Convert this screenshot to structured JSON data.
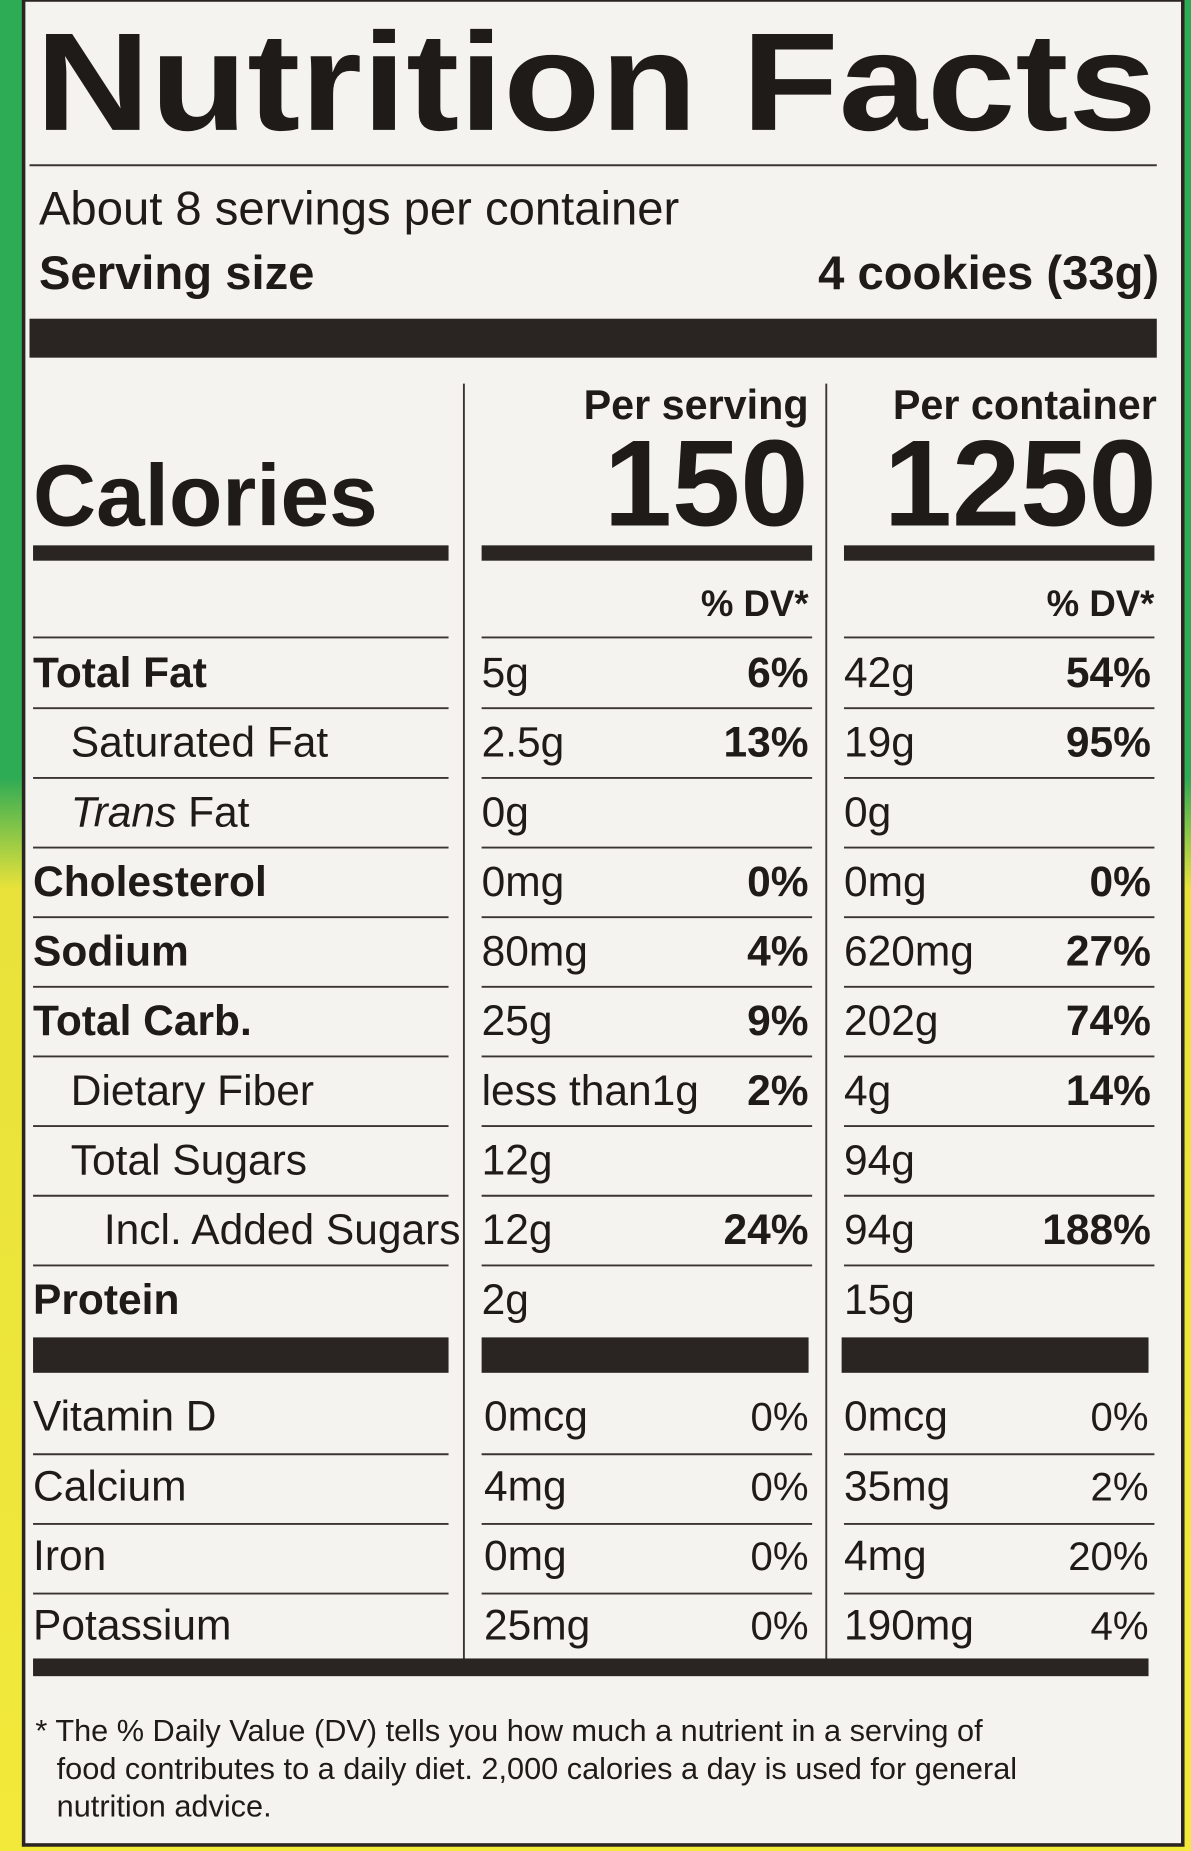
{
  "title": "Nutrition Facts",
  "servings": "About 8 servings per container",
  "serving_size": {
    "label": "Serving size",
    "value": "4 cookies (33g)"
  },
  "columns": [
    "Per serving",
    "Per container"
  ],
  "calories": {
    "label": "Calories",
    "per_serving": "150",
    "per_container": "1250"
  },
  "dv_header": [
    "% DV*",
    "% DV*"
  ],
  "nutrients": [
    {
      "label": "Total Fat",
      "level": 0,
      "serving": "5g",
      "serving_dv": "6%",
      "container": "42g",
      "container_dv": "54%"
    },
    {
      "label": "Saturated Fat",
      "level": 1,
      "serving": "2.5g",
      "serving_dv": "13%",
      "container": "19g",
      "container_dv": "95%"
    },
    {
      "label_italic": "Trans",
      "label": "Fat",
      "level": 1,
      "serving": "0g",
      "container": "0g"
    },
    {
      "label": "Cholesterol",
      "level": 0,
      "serving": "0mg",
      "serving_dv": "0%",
      "container": "0mg",
      "container_dv": "0%"
    },
    {
      "label": "Sodium",
      "level": 0,
      "serving": "80mg",
      "serving_dv": "4%",
      "container": "620mg",
      "container_dv": "27%"
    },
    {
      "label": "Total Carb.",
      "level": 0,
      "serving": "25g",
      "serving_dv": "9%",
      "container": "202g",
      "container_dv": "74%"
    },
    {
      "label": "Dietary Fiber",
      "level": 1,
      "serving": "less than1g",
      "serving_dv": "2%",
      "container": "4g",
      "container_dv": "14%"
    },
    {
      "label": "Total Sugars",
      "level": 1,
      "serving": "12g",
      "container": "94g"
    },
    {
      "label": "Incl. Added Sugars",
      "level": 2,
      "serving": "12g",
      "serving_dv": "24%",
      "container": "94g",
      "container_dv": "188%"
    },
    {
      "label": "Protein",
      "level": 0,
      "serving": "2g",
      "container": "15g"
    }
  ],
  "vitamins": [
    {
      "label": "Vitamin D",
      "serving": "0mcg",
      "serving_dv": "0%",
      "container": "0mcg",
      "container_dv": "0%"
    },
    {
      "label": "Calcium",
      "serving": "4mg",
      "serving_dv": "0%",
      "container": "35mg",
      "container_dv": "2%"
    },
    {
      "label": "Iron",
      "serving": "0mg",
      "serving_dv": "0%",
      "container": "4mg",
      "container_dv": "20%"
    },
    {
      "label": "Potassium",
      "serving": "25mg",
      "serving_dv": "0%",
      "container": "190mg",
      "container_dv": "4%"
    }
  ],
  "footnote": [
    "* The % Daily Value (DV) tells you how much a nutrient in a serving of",
    "food contributes to a daily diet. 2,000 calories a day is used for general",
    "nutrition advice."
  ]
}
